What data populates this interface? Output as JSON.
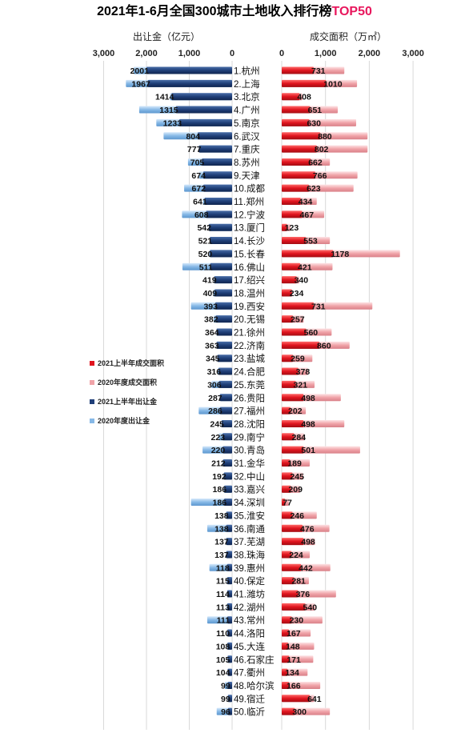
{
  "chart_data": {
    "type": "bar",
    "title": {
      "main": "2021年1-6月全国300城市土地收入排行榜",
      "accent": "TOP50"
    },
    "left_axis": {
      "label": "出让金（亿元）",
      "ticks": [
        3000,
        2000,
        1000,
        0
      ],
      "tick_labels": [
        "3,000",
        "2,000",
        "1,000",
        "0"
      ],
      "range": [
        0,
        3000
      ]
    },
    "right_axis": {
      "label": "成交面积（万㎡）",
      "ticks": [
        0,
        1000,
        2000,
        3000
      ],
      "tick_labels": [
        "0",
        "1,000",
        "2,000",
        "3,000"
      ],
      "range": [
        0,
        3000
      ]
    },
    "legend": [
      {
        "name": "2021上半年成交面积",
        "color": "#e0141e"
      },
      {
        "name": "2020年度成交面积",
        "color": "#f0a3a8"
      },
      {
        "name": "2021上半年出让金",
        "color": "#1f3f78"
      },
      {
        "name": "2020年度出让金",
        "color": "#86b8e6"
      }
    ],
    "categories": [
      "1.杭州",
      "2.上海",
      "3.北京",
      "4.广州",
      "5.南京",
      "6.武汉",
      "7.重庆",
      "8.苏州",
      "9.天津",
      "10.成都",
      "11.郑州",
      "12.宁波",
      "13.厦门",
      "14.长沙",
      "15.长春",
      "16.佛山",
      "17.绍兴",
      "18.温州",
      "19.西安",
      "20.无锡",
      "21.徐州",
      "22.济南",
      "23.盐城",
      "24.合肥",
      "25.东莞",
      "26.贵阳",
      "27.福州",
      "28.沈阳",
      "29.南宁",
      "30.青岛",
      "31.金华",
      "32.中山",
      "33.嘉兴",
      "34.深圳",
      "35.淮安",
      "36.南通",
      "37.芜湖",
      "38.珠海",
      "39.惠州",
      "40.保定",
      "41.潍坊",
      "42.湖州",
      "43.常州",
      "44.洛阳",
      "45.大连",
      "46.石家庄",
      "47.衢州",
      "48.哈尔滨",
      "49.宿迁",
      "50.临沂"
    ],
    "series": [
      {
        "name": "2021上半年出让金",
        "values": [
          2001,
          1967,
          1414,
          1315,
          1233,
          804,
          777,
          705,
          674,
          672,
          641,
          608,
          542,
          521,
          520,
          511,
          419,
          409,
          393,
          382,
          364,
          363,
          345,
          316,
          306,
          287,
          286,
          245,
          223,
          220,
          212,
          192,
          186,
          186,
          138,
          138,
          137,
          137,
          118,
          115,
          114,
          113,
          111,
          110,
          108,
          105,
          104,
          99,
          99,
          96
        ]
      },
      {
        "name": "2020年度出让金",
        "values": [
          2300,
          2480,
          1450,
          2170,
          1770,
          1600,
          770,
          1030,
          770,
          1120,
          680,
          1170,
          540,
          520,
          530,
          1160,
          420,
          440,
          960,
          430,
          360,
          360,
          340,
          330,
          480,
          280,
          780,
          245,
          310,
          690,
          220,
          200,
          190,
          960,
          140,
          580,
          140,
          140,
          530,
          120,
          110,
          120,
          580,
          110,
          110,
          100,
          100,
          170,
          100,
          360
        ]
      },
      {
        "name": "2021上半年成交面积",
        "values": [
          731,
          1010,
          408,
          651,
          630,
          880,
          802,
          662,
          766,
          623,
          434,
          467,
          123,
          553,
          1178,
          421,
          340,
          234,
          731,
          257,
          560,
          860,
          259,
          378,
          321,
          498,
          202,
          498,
          284,
          501,
          189,
          245,
          209,
          77,
          246,
          476,
          498,
          224,
          442,
          281,
          376,
          540,
          230,
          167,
          148,
          171,
          134,
          166,
          641,
          300
        ]
      },
      {
        "name": "2020年度成交面积",
        "values": [
          1430,
          1720,
          470,
          1280,
          1700,
          1960,
          1960,
          1100,
          1730,
          1640,
          800,
          970,
          200,
          1100,
          2700,
          1160,
          400,
          240,
          2070,
          500,
          1140,
          1550,
          700,
          600,
          750,
          1350,
          550,
          1430,
          520,
          1790,
          640,
          490,
          420,
          160,
          800,
          1090,
          760,
          640,
          1110,
          620,
          1240,
          760,
          930,
          660,
          740,
          720,
          590,
          880,
          740,
          1100
        ]
      }
    ]
  }
}
